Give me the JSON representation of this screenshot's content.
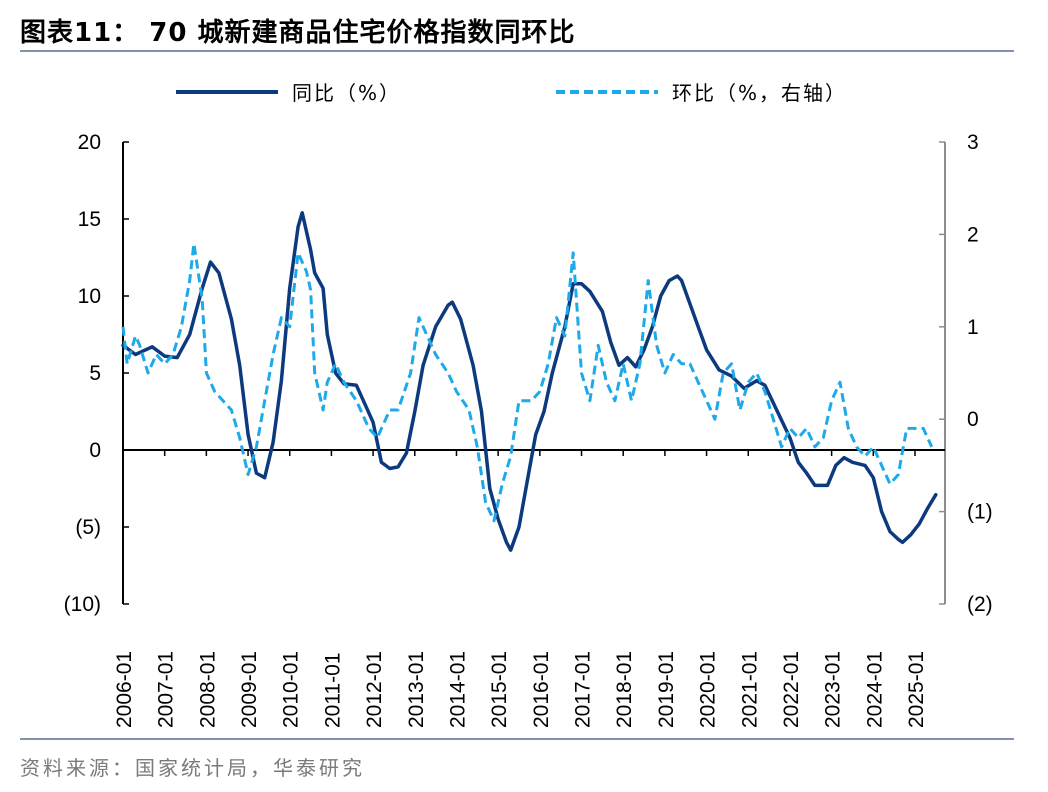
{
  "title": "图表11：  70 城新建商品住宅价格指数同环比",
  "source": "资料来源：国家统计局，华泰研究",
  "colors": {
    "yoy": "#0d3a7e",
    "mom": "#1ea9e8",
    "axis_left": "#000000",
    "axis_right": "#8c8c8c"
  },
  "chart_data": {
    "type": "line",
    "x_ticks": [
      "2006-01",
      "2007-01",
      "2008-01",
      "2009-01",
      "2010-01",
      "2011-01",
      "2012-01",
      "2013-01",
      "2014-01",
      "2015-01",
      "2016-01",
      "2017-01",
      "2018-01",
      "2019-01",
      "2020-01",
      "2021-01",
      "2022-01",
      "2023-01",
      "2024-01",
      "2025-01"
    ],
    "y_left_ticks": [
      "20",
      "15",
      "10",
      "5",
      "0",
      "(5)",
      "(10)"
    ],
    "y_left_range": [
      -10,
      20
    ],
    "y_right_ticks": [
      "3",
      "2",
      "1",
      "0",
      "(1)",
      "(2)"
    ],
    "y_right_range": [
      -2,
      3
    ],
    "legend": [
      "同比（%）",
      "环比（%，右轴）"
    ],
    "legend_position": "top",
    "series": [
      {
        "name": "同比（%）",
        "axis": "left",
        "style": "solid",
        "points": [
          [
            2006.0,
            6.8
          ],
          [
            2006.3,
            6.2
          ],
          [
            2006.7,
            6.7
          ],
          [
            2007.0,
            6.1
          ],
          [
            2007.3,
            6.0
          ],
          [
            2007.6,
            7.5
          ],
          [
            2007.9,
            10.5
          ],
          [
            2008.1,
            12.2
          ],
          [
            2008.3,
            11.5
          ],
          [
            2008.6,
            8.5
          ],
          [
            2008.8,
            5.5
          ],
          [
            2009.0,
            1.0
          ],
          [
            2009.2,
            -1.5
          ],
          [
            2009.4,
            -1.8
          ],
          [
            2009.6,
            0.5
          ],
          [
            2009.8,
            4.5
          ],
          [
            2010.0,
            10.5
          ],
          [
            2010.2,
            14.5
          ],
          [
            2010.3,
            15.4
          ],
          [
            2010.5,
            13.0
          ],
          [
            2010.6,
            11.5
          ],
          [
            2010.8,
            10.5
          ],
          [
            2010.9,
            7.5
          ],
          [
            2011.1,
            5.0
          ],
          [
            2011.3,
            4.3
          ],
          [
            2011.6,
            4.2
          ],
          [
            2011.8,
            3.0
          ],
          [
            2012.0,
            1.8
          ],
          [
            2012.2,
            -0.8
          ],
          [
            2012.4,
            -1.2
          ],
          [
            2012.6,
            -1.1
          ],
          [
            2012.8,
            -0.2
          ],
          [
            2013.0,
            2.5
          ],
          [
            2013.2,
            5.5
          ],
          [
            2013.5,
            8.0
          ],
          [
            2013.8,
            9.4
          ],
          [
            2013.9,
            9.6
          ],
          [
            2014.1,
            8.5
          ],
          [
            2014.4,
            5.5
          ],
          [
            2014.6,
            2.5
          ],
          [
            2014.8,
            -2.5
          ],
          [
            2015.0,
            -4.5
          ],
          [
            2015.2,
            -6.0
          ],
          [
            2015.3,
            -6.5
          ],
          [
            2015.5,
            -5.0
          ],
          [
            2015.7,
            -2.0
          ],
          [
            2015.9,
            1.0
          ],
          [
            2016.1,
            2.5
          ],
          [
            2016.3,
            5.0
          ],
          [
            2016.6,
            8.0
          ],
          [
            2016.8,
            10.8
          ],
          [
            2017.0,
            10.8
          ],
          [
            2017.2,
            10.3
          ],
          [
            2017.5,
            9.0
          ],
          [
            2017.7,
            7.0
          ],
          [
            2017.9,
            5.5
          ],
          [
            2018.1,
            6.0
          ],
          [
            2018.3,
            5.4
          ],
          [
            2018.5,
            6.5
          ],
          [
            2018.7,
            8.0
          ],
          [
            2018.9,
            10.0
          ],
          [
            2019.1,
            11.0
          ],
          [
            2019.3,
            11.3
          ],
          [
            2019.4,
            11.0
          ],
          [
            2019.6,
            9.5
          ],
          [
            2019.8,
            8.0
          ],
          [
            2020.0,
            6.5
          ],
          [
            2020.3,
            5.2
          ],
          [
            2020.6,
            4.8
          ],
          [
            2020.9,
            4.0
          ],
          [
            2021.2,
            4.5
          ],
          [
            2021.4,
            4.2
          ],
          [
            2021.7,
            2.5
          ],
          [
            2022.0,
            0.8
          ],
          [
            2022.2,
            -0.8
          ],
          [
            2022.4,
            -1.5
          ],
          [
            2022.6,
            -2.3
          ],
          [
            2022.9,
            -2.3
          ],
          [
            2023.1,
            -1.0
          ],
          [
            2023.3,
            -0.5
          ],
          [
            2023.5,
            -0.8
          ],
          [
            2023.8,
            -1.0
          ],
          [
            2024.0,
            -1.8
          ],
          [
            2024.2,
            -4.0
          ],
          [
            2024.4,
            -5.3
          ],
          [
            2024.6,
            -5.8
          ],
          [
            2024.7,
            -6.0
          ],
          [
            2024.9,
            -5.5
          ],
          [
            2025.1,
            -4.8
          ],
          [
            2025.3,
            -3.8
          ],
          [
            2025.5,
            -2.9
          ]
        ]
      },
      {
        "name": "环比（%，右轴）",
        "axis": "right",
        "style": "dashed",
        "points": [
          [
            2006.0,
            1.0
          ],
          [
            2006.1,
            0.6
          ],
          [
            2006.3,
            0.9
          ],
          [
            2006.4,
            0.8
          ],
          [
            2006.6,
            0.5
          ],
          [
            2006.8,
            0.7
          ],
          [
            2007.0,
            0.6
          ],
          [
            2007.2,
            0.7
          ],
          [
            2007.4,
            1.0
          ],
          [
            2007.6,
            1.5
          ],
          [
            2007.7,
            1.9
          ],
          [
            2007.9,
            1.3
          ],
          [
            2008.0,
            0.5
          ],
          [
            2008.2,
            0.3
          ],
          [
            2008.4,
            0.2
          ],
          [
            2008.6,
            0.1
          ],
          [
            2008.8,
            -0.2
          ],
          [
            2009.0,
            -0.6
          ],
          [
            2009.2,
            -0.3
          ],
          [
            2009.4,
            0.2
          ],
          [
            2009.6,
            0.7
          ],
          [
            2009.8,
            1.1
          ],
          [
            2010.0,
            1.0
          ],
          [
            2010.2,
            1.8
          ],
          [
            2010.4,
            1.6
          ],
          [
            2010.5,
            1.4
          ],
          [
            2010.6,
            0.5
          ],
          [
            2010.8,
            0.1
          ],
          [
            2010.9,
            0.4
          ],
          [
            2011.1,
            0.6
          ],
          [
            2011.3,
            0.4
          ],
          [
            2011.6,
            0.2
          ],
          [
            2011.9,
            -0.1
          ],
          [
            2012.1,
            -0.2
          ],
          [
            2012.4,
            0.1
          ],
          [
            2012.6,
            0.1
          ],
          [
            2012.9,
            0.5
          ],
          [
            2013.1,
            1.1
          ],
          [
            2013.3,
            0.9
          ],
          [
            2013.5,
            0.7
          ],
          [
            2013.8,
            0.5
          ],
          [
            2014.0,
            0.3
          ],
          [
            2014.3,
            0.1
          ],
          [
            2014.5,
            -0.3
          ],
          [
            2014.7,
            -0.9
          ],
          [
            2014.9,
            -1.1
          ],
          [
            2015.1,
            -0.7
          ],
          [
            2015.3,
            -0.4
          ],
          [
            2015.5,
            0.2
          ],
          [
            2015.8,
            0.2
          ],
          [
            2016.0,
            0.3
          ],
          [
            2016.2,
            0.6
          ],
          [
            2016.4,
            1.1
          ],
          [
            2016.6,
            0.9
          ],
          [
            2016.8,
            1.8
          ],
          [
            2017.0,
            0.5
          ],
          [
            2017.2,
            0.2
          ],
          [
            2017.4,
            0.8
          ],
          [
            2017.6,
            0.4
          ],
          [
            2017.8,
            0.2
          ],
          [
            2018.0,
            0.6
          ],
          [
            2018.2,
            0.2
          ],
          [
            2018.4,
            0.6
          ],
          [
            2018.6,
            1.5
          ],
          [
            2018.8,
            0.8
          ],
          [
            2019.0,
            0.5
          ],
          [
            2019.2,
            0.7
          ],
          [
            2019.4,
            0.6
          ],
          [
            2019.6,
            0.6
          ],
          [
            2019.8,
            0.4
          ],
          [
            2020.0,
            0.2
          ],
          [
            2020.2,
            0.0
          ],
          [
            2020.4,
            0.5
          ],
          [
            2020.6,
            0.6
          ],
          [
            2020.8,
            0.1
          ],
          [
            2021.0,
            0.4
          ],
          [
            2021.2,
            0.5
          ],
          [
            2021.4,
            0.3
          ],
          [
            2021.6,
            0.0
          ],
          [
            2021.8,
            -0.3
          ],
          [
            2022.0,
            -0.1
          ],
          [
            2022.2,
            -0.2
          ],
          [
            2022.4,
            -0.1
          ],
          [
            2022.6,
            -0.3
          ],
          [
            2022.8,
            -0.2
          ],
          [
            2023.0,
            0.2
          ],
          [
            2023.2,
            0.4
          ],
          [
            2023.4,
            -0.1
          ],
          [
            2023.6,
            -0.3
          ],
          [
            2023.8,
            -0.4
          ],
          [
            2024.0,
            -0.3
          ],
          [
            2024.2,
            -0.5
          ],
          [
            2024.4,
            -0.7
          ],
          [
            2024.6,
            -0.6
          ],
          [
            2024.8,
            -0.1
          ],
          [
            2025.0,
            -0.1
          ],
          [
            2025.2,
            -0.1
          ],
          [
            2025.4,
            -0.3
          ]
        ]
      }
    ]
  }
}
